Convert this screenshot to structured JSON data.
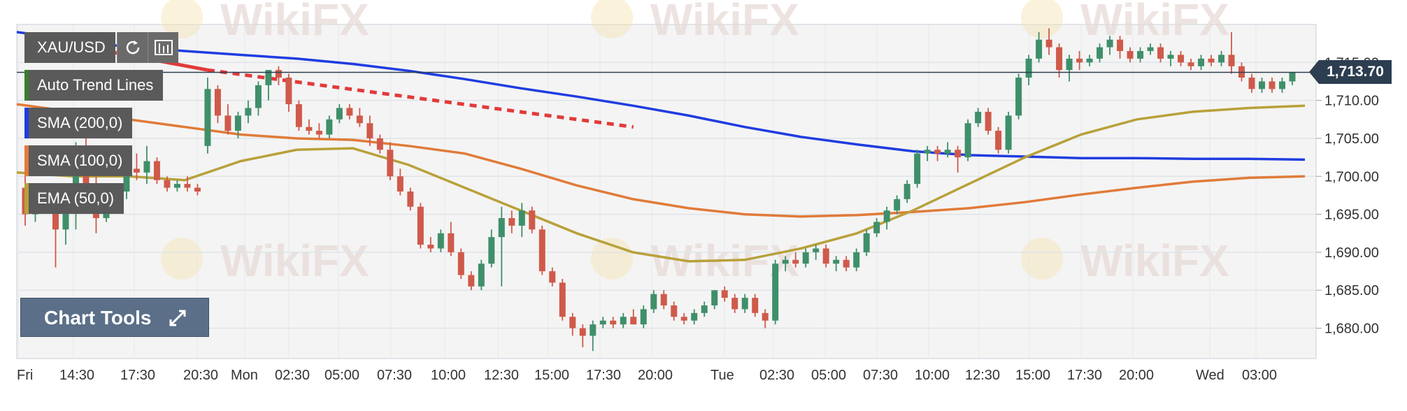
{
  "symbol": "XAU/USD",
  "toolbar": {
    "refresh_icon": "refresh-icon",
    "chart_type_icon": "candlestick-icon"
  },
  "overlays": [
    {
      "label": "Auto Trend Lines",
      "color": "#3a7d2c"
    },
    {
      "label": "SMA (200,0)",
      "color": "#1f3de0"
    },
    {
      "label": "SMA (100,0)",
      "color": "#e07b39"
    },
    {
      "label": "EMA (50,0)",
      "color": "#b8a13a"
    }
  ],
  "chart_tools_label": "Chart Tools",
  "last_price_label": "1,713.70",
  "watermark_text": "WikiFX",
  "chart_data": {
    "type": "candlestick",
    "symbol": "XAU/USD",
    "ylim": [
      1676,
      1720
    ],
    "y_ticks": [
      1680,
      1685,
      1690,
      1695,
      1700,
      1705,
      1710,
      1715
    ],
    "y_tick_labels": [
      "1,680.00",
      "1,685.00",
      "1,690.00",
      "1,695.00",
      "1,700.00",
      "1,705.00",
      "1,710.00",
      "1,715.00"
    ],
    "x_tick_labels": [
      "Fri",
      "14:30",
      "17:30",
      "20:30",
      "Mon",
      "02:30",
      "05:00",
      "07:30",
      "10:00",
      "12:30",
      "15:00",
      "17:30",
      "20:00",
      "Tue",
      "02:30",
      "05:00",
      "07:30",
      "10:00",
      "12:30",
      "15:00",
      "17:30",
      "20:00",
      "Wed",
      "03:00"
    ],
    "last_price": 1713.7,
    "grid": true,
    "candles": [
      [
        1698.5,
        1701.0,
        1693.5,
        1695.0
      ],
      [
        1695.0,
        1697.5,
        1694.0,
        1697.0
      ],
      [
        1697.0,
        1699.0,
        1695.5,
        1696.0
      ],
      [
        1696.0,
        1697.0,
        1688.0,
        1693.0
      ],
      [
        1693.0,
        1696.0,
        1691.0,
        1695.5
      ],
      [
        1695.5,
        1704.5,
        1693.0,
        1703.5
      ],
      [
        1703.5,
        1705.0,
        1698.0,
        1699.0
      ],
      [
        1699.0,
        1700.0,
        1692.5,
        1694.5
      ],
      [
        1694.5,
        1698.0,
        1694.0,
        1697.0
      ],
      [
        1697.0,
        1699.0,
        1696.0,
        1698.0
      ],
      [
        1698.0,
        1702.0,
        1697.0,
        1701.0
      ],
      [
        1701.0,
        1703.0,
        1699.5,
        1700.5
      ],
      [
        1700.5,
        1704.0,
        1699.0,
        1702.0
      ],
      [
        1702.0,
        1702.5,
        1699.0,
        1699.5
      ],
      [
        1699.5,
        1700.0,
        1698.0,
        1698.5
      ],
      [
        1698.5,
        1699.5,
        1698.0,
        1699.0
      ],
      [
        1699.0,
        1700.0,
        1698.0,
        1698.5
      ],
      [
        1698.5,
        1699.0,
        1697.5,
        1698.0
      ],
      [
        1704.0,
        1713.0,
        1703.0,
        1711.5
      ],
      [
        1711.5,
        1712.0,
        1707.0,
        1708.0
      ],
      [
        1708.0,
        1709.5,
        1705.5,
        1706.0
      ],
      [
        1706.0,
        1708.5,
        1705.0,
        1708.0
      ],
      [
        1708.0,
        1710.0,
        1707.0,
        1709.0
      ],
      [
        1709.0,
        1712.5,
        1708.0,
        1712.0
      ],
      [
        1712.0,
        1714.0,
        1710.0,
        1714.0
      ],
      [
        1714.0,
        1714.5,
        1712.0,
        1713.0
      ],
      [
        1713.0,
        1713.5,
        1708.5,
        1709.5
      ],
      [
        1709.5,
        1710.0,
        1706.0,
        1706.5
      ],
      [
        1706.5,
        1707.5,
        1705.5,
        1706.0
      ],
      [
        1706.0,
        1707.0,
        1705.0,
        1705.5
      ],
      [
        1705.5,
        1708.0,
        1705.0,
        1707.5
      ],
      [
        1707.5,
        1709.5,
        1707.0,
        1709.0
      ],
      [
        1709.0,
        1709.5,
        1707.5,
        1708.0
      ],
      [
        1708.0,
        1709.0,
        1706.5,
        1707.0
      ],
      [
        1707.0,
        1708.0,
        1704.0,
        1705.0
      ],
      [
        1705.0,
        1705.5,
        1703.0,
        1703.5
      ],
      [
        1703.5,
        1704.5,
        1699.5,
        1700.0
      ],
      [
        1700.0,
        1701.0,
        1697.5,
        1698.0
      ],
      [
        1698.0,
        1698.5,
        1695.5,
        1696.0
      ],
      [
        1696.0,
        1696.5,
        1690.5,
        1691.0
      ],
      [
        1691.0,
        1692.0,
        1690.0,
        1690.5
      ],
      [
        1690.5,
        1693.0,
        1690.0,
        1692.5
      ],
      [
        1692.5,
        1694.0,
        1689.5,
        1690.0
      ],
      [
        1690.0,
        1690.5,
        1686.5,
        1687.0
      ],
      [
        1687.0,
        1687.5,
        1685.0,
        1685.5
      ],
      [
        1685.5,
        1689.0,
        1685.0,
        1688.5
      ],
      [
        1688.5,
        1693.0,
        1688.0,
        1692.0
      ],
      [
        1692.0,
        1696.0,
        1685.5,
        1694.5
      ],
      [
        1694.5,
        1695.5,
        1692.5,
        1693.5
      ],
      [
        1693.5,
        1696.5,
        1692.0,
        1695.5
      ],
      [
        1695.5,
        1696.0,
        1692.5,
        1693.0
      ],
      [
        1693.0,
        1693.5,
        1687.0,
        1687.5
      ],
      [
        1687.5,
        1688.0,
        1685.5,
        1686.0
      ],
      [
        1686.0,
        1686.5,
        1681.0,
        1681.5
      ],
      [
        1681.5,
        1682.0,
        1679.0,
        1680.0
      ],
      [
        1680.0,
        1680.5,
        1677.5,
        1679.0
      ],
      [
        1679.0,
        1681.0,
        1677.0,
        1680.5
      ],
      [
        1680.5,
        1681.5,
        1680.0,
        1681.0
      ],
      [
        1681.0,
        1681.5,
        1680.0,
        1680.5
      ],
      [
        1680.5,
        1682.0,
        1680.0,
        1681.5
      ],
      [
        1681.5,
        1682.5,
        1680.5,
        1680.5
      ],
      [
        1680.5,
        1683.0,
        1680.0,
        1682.5
      ],
      [
        1682.5,
        1685.0,
        1682.0,
        1684.5
      ],
      [
        1684.5,
        1685.0,
        1682.5,
        1683.0
      ],
      [
        1683.0,
        1683.5,
        1681.0,
        1681.5
      ],
      [
        1681.5,
        1682.0,
        1680.5,
        1681.0
      ],
      [
        1681.0,
        1682.5,
        1680.5,
        1682.0
      ],
      [
        1682.0,
        1683.5,
        1681.5,
        1683.0
      ],
      [
        1683.0,
        1685.0,
        1682.5,
        1685.0
      ],
      [
        1685.0,
        1685.5,
        1683.5,
        1684.0
      ],
      [
        1684.0,
        1684.5,
        1682.0,
        1682.5
      ],
      [
        1682.5,
        1684.5,
        1682.0,
        1684.0
      ],
      [
        1684.0,
        1684.5,
        1681.5,
        1682.0
      ],
      [
        1682.0,
        1682.5,
        1680.0,
        1681.0
      ],
      [
        1681.0,
        1689.0,
        1680.5,
        1688.5
      ],
      [
        1688.5,
        1689.5,
        1687.5,
        1689.0
      ],
      [
        1689.0,
        1690.0,
        1688.0,
        1688.5
      ],
      [
        1688.5,
        1690.5,
        1688.0,
        1690.0
      ],
      [
        1690.0,
        1691.0,
        1689.0,
        1690.5
      ],
      [
        1690.5,
        1691.0,
        1688.0,
        1688.5
      ],
      [
        1688.5,
        1689.5,
        1687.5,
        1689.0
      ],
      [
        1689.0,
        1689.5,
        1687.5,
        1688.0
      ],
      [
        1688.0,
        1690.5,
        1687.5,
        1690.0
      ],
      [
        1690.0,
        1693.0,
        1689.5,
        1692.5
      ],
      [
        1692.5,
        1694.5,
        1692.0,
        1694.0
      ],
      [
        1694.0,
        1696.0,
        1693.0,
        1695.5
      ],
      [
        1695.5,
        1697.5,
        1695.0,
        1697.0
      ],
      [
        1697.0,
        1699.5,
        1696.5,
        1699.0
      ],
      [
        1699.0,
        1703.5,
        1698.5,
        1703.0
      ],
      [
        1703.0,
        1704.0,
        1702.0,
        1703.5
      ],
      [
        1703.5,
        1704.0,
        1702.0,
        1703.0
      ],
      [
        1703.0,
        1704.5,
        1702.5,
        1703.5
      ],
      [
        1703.5,
        1704.0,
        1700.5,
        1702.5
      ],
      [
        1702.5,
        1707.5,
        1702.0,
        1707.0
      ],
      [
        1707.0,
        1709.0,
        1706.5,
        1708.5
      ],
      [
        1708.5,
        1709.0,
        1705.5,
        1706.0
      ],
      [
        1706.0,
        1706.5,
        1703.0,
        1703.5
      ],
      [
        1703.5,
        1708.5,
        1703.0,
        1708.0
      ],
      [
        1708.0,
        1713.5,
        1707.5,
        1713.0
      ],
      [
        1713.0,
        1716.0,
        1712.0,
        1715.5
      ],
      [
        1715.5,
        1719.0,
        1715.0,
        1718.0
      ],
      [
        1718.0,
        1719.5,
        1716.0,
        1717.0
      ],
      [
        1717.0,
        1717.5,
        1713.0,
        1714.0
      ],
      [
        1714.0,
        1716.0,
        1712.5,
        1715.5
      ],
      [
        1715.5,
        1716.5,
        1714.0,
        1715.0
      ],
      [
        1715.0,
        1716.0,
        1714.5,
        1715.5
      ],
      [
        1715.5,
        1717.5,
        1715.0,
        1717.0
      ],
      [
        1717.0,
        1718.5,
        1716.0,
        1718.0
      ],
      [
        1718.0,
        1718.5,
        1715.5,
        1716.5
      ],
      [
        1716.5,
        1717.0,
        1715.0,
        1715.5
      ],
      [
        1715.5,
        1717.0,
        1715.0,
        1716.5
      ],
      [
        1716.5,
        1717.5,
        1716.0,
        1717.0
      ],
      [
        1717.0,
        1717.5,
        1715.0,
        1715.5
      ],
      [
        1715.5,
        1716.5,
        1714.5,
        1716.0
      ],
      [
        1716.0,
        1716.5,
        1714.5,
        1715.0
      ],
      [
        1715.0,
        1715.5,
        1714.0,
        1714.5
      ],
      [
        1714.5,
        1716.0,
        1714.0,
        1715.5
      ],
      [
        1715.5,
        1716.0,
        1714.5,
        1715.0
      ],
      [
        1715.0,
        1716.5,
        1714.5,
        1716.0
      ],
      [
        1716.0,
        1719.0,
        1713.5,
        1714.5
      ],
      [
        1714.5,
        1715.0,
        1712.5,
        1713.0
      ],
      [
        1713.0,
        1713.5,
        1711.0,
        1711.5
      ],
      [
        1711.5,
        1713.0,
        1711.0,
        1712.5
      ],
      [
        1712.5,
        1713.0,
        1711.0,
        1711.5
      ],
      [
        1711.5,
        1713.0,
        1711.0,
        1712.5
      ],
      [
        1712.5,
        1713.7,
        1712.0,
        1713.7
      ]
    ],
    "series": [
      {
        "name": "SMA (200,0)",
        "color": "#1f3de0",
        "values": [
          1719.0,
          1718.0,
          1717.0,
          1716.5,
          1716.0,
          1715.5,
          1714.8,
          1713.9,
          1712.8,
          1711.6,
          1710.5,
          1709.3,
          1708.0,
          1706.5,
          1705.2,
          1704.2,
          1703.3,
          1702.8,
          1702.6,
          1702.4,
          1702.4,
          1702.3,
          1702.3,
          1702.2
        ]
      },
      {
        "name": "SMA (100,0)",
        "color": "#e07b39",
        "values": [
          1709.5,
          1708.5,
          1707.5,
          1706.5,
          1705.5,
          1705.0,
          1704.8,
          1704.0,
          1703.0,
          1701.0,
          1698.8,
          1697.0,
          1695.8,
          1695.0,
          1694.7,
          1694.9,
          1695.3,
          1695.8,
          1696.6,
          1697.6,
          1698.5,
          1699.3,
          1699.8,
          1700.0
        ]
      },
      {
        "name": "EMA (50,0)",
        "color": "#b8a13a",
        "values": [
          1700.5,
          1700.0,
          1700.0,
          1699.5,
          1702.0,
          1703.5,
          1703.7,
          1701.5,
          1698.5,
          1695.5,
          1692.5,
          1690.0,
          1688.8,
          1689.0,
          1690.5,
          1692.5,
          1695.5,
          1699.0,
          1702.5,
          1705.5,
          1707.5,
          1708.5,
          1709.0,
          1709.3
        ]
      }
    ],
    "trend_lines": [
      {
        "name": "Auto Trend Lines",
        "color": "#e23a3a",
        "style": "solid",
        "from": [
          0,
          1718.5
        ],
        "to": [
          18,
          1714.0
        ]
      },
      {
        "name": "Auto Trend Lines",
        "color": "#e23a3a",
        "style": "dashed",
        "from": [
          18,
          1714.0
        ],
        "to": [
          60,
          1706.5
        ]
      }
    ]
  }
}
